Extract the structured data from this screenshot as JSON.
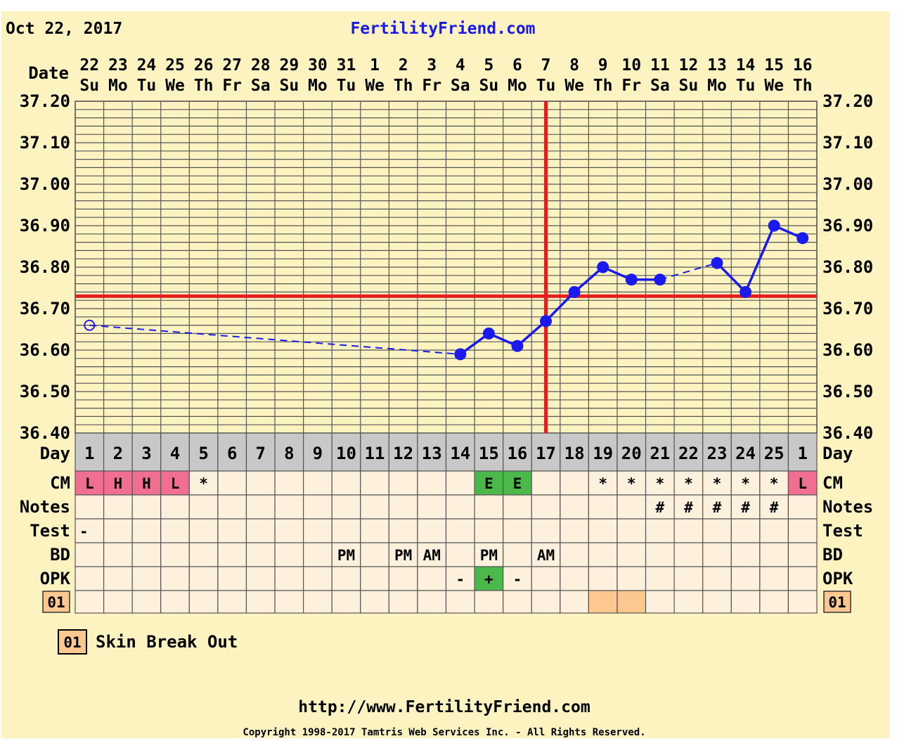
{
  "header": {
    "date": "Oct 22, 2017",
    "site": "FertilityFriend.com"
  },
  "labels": {
    "date": "Date",
    "day": "Day",
    "cm": "CM",
    "notes": "Notes",
    "test": "Test",
    "bd": "BD",
    "opk": "OPK",
    "custom": "01"
  },
  "legend": {
    "code": "01",
    "text": "Skin Break Out"
  },
  "footer": {
    "url": "http://www.FertilityFriend.com",
    "copyright": "Copyright 1998-2017 Tamtris Web Services Inc. - All Rights Reserved."
  },
  "colors": {
    "background": "#fdf3c0",
    "plot_bg": "#fdf3c0",
    "row_bg": "#fdf0dc",
    "grid": "#555555",
    "temp_line": "#1a1aee",
    "coverline": "#e41e1e",
    "cm_fertile": "#f06e90",
    "cm_egg": "#4cb84c",
    "opk_pos": "#4cb84c",
    "custom_marker": "#fcc890",
    "day_row_bg": "#c8c8c8",
    "link": "#1a1aee"
  },
  "chart_data": {
    "type": "line",
    "title": "",
    "dates": [
      "22",
      "23",
      "24",
      "25",
      "26",
      "27",
      "28",
      "29",
      "30",
      "31",
      "1",
      "2",
      "3",
      "4",
      "5",
      "6",
      "7",
      "8",
      "9",
      "10",
      "11",
      "12",
      "13",
      "14",
      "15",
      "16"
    ],
    "weekdays": [
      "Su",
      "Mo",
      "Tu",
      "We",
      "Th",
      "Fr",
      "Sa",
      "Su",
      "Mo",
      "Tu",
      "We",
      "Th",
      "Fr",
      "Sa",
      "Su",
      "Mo",
      "Tu",
      "We",
      "Th",
      "Fr",
      "Sa",
      "Su",
      "Mo",
      "Tu",
      "We",
      "Th"
    ],
    "cycle_days": [
      "1",
      "2",
      "3",
      "4",
      "5",
      "6",
      "7",
      "8",
      "9",
      "10",
      "11",
      "12",
      "13",
      "14",
      "15",
      "16",
      "17",
      "18",
      "19",
      "20",
      "21",
      "22",
      "23",
      "24",
      "25",
      "1"
    ],
    "y_ticks": [
      "37.20",
      "37.10",
      "37.00",
      "36.90",
      "36.80",
      "36.70",
      "36.60",
      "36.50",
      "36.40"
    ],
    "ylim": [
      36.4,
      37.2
    ],
    "grid": true,
    "series": [
      {
        "temps": [
          36.66,
          null,
          null,
          null,
          null,
          null,
          null,
          null,
          null,
          null,
          null,
          null,
          null,
          36.59,
          36.64,
          36.61,
          36.67,
          36.74,
          36.8,
          36.77,
          36.77,
          null,
          36.81,
          36.74,
          36.9,
          36.87
        ],
        "open_points": [
          0
        ]
      }
    ],
    "coverline": 36.73,
    "ovulation_day_index": 16,
    "cm": [
      "L",
      "H",
      "H",
      "L",
      "*",
      "",
      "",
      "",
      "",
      "",
      "",
      "",
      "",
      "",
      "E",
      "E",
      "",
      "",
      "*",
      "*",
      "*",
      "*",
      "*",
      "*",
      "*",
      "L"
    ],
    "cm_fertile": [
      true,
      true,
      true,
      true,
      false,
      false,
      false,
      false,
      false,
      false,
      false,
      false,
      false,
      false,
      false,
      false,
      false,
      false,
      false,
      false,
      false,
      false,
      false,
      false,
      false,
      true
    ],
    "cm_egg": [
      false,
      false,
      false,
      false,
      false,
      false,
      false,
      false,
      false,
      false,
      false,
      false,
      false,
      false,
      true,
      true,
      false,
      false,
      false,
      false,
      false,
      false,
      false,
      false,
      false,
      false
    ],
    "notes": [
      "",
      "",
      "",
      "",
      "",
      "",
      "",
      "",
      "",
      "",
      "",
      "",
      "",
      "",
      "",
      "",
      "",
      "",
      "",
      "",
      "#",
      "#",
      "#",
      "#",
      "#",
      ""
    ],
    "test": [
      "-",
      "",
      "",
      "",
      "",
      "",
      "",
      "",
      "",
      "",
      "",
      "",
      "",
      "",
      "",
      "",
      "",
      "",
      "",
      "",
      "",
      "",
      "",
      "",
      "",
      ""
    ],
    "bd": [
      "",
      "",
      "",
      "",
      "",
      "",
      "",
      "",
      "",
      "PM",
      "",
      "PM",
      "AM",
      "",
      "PM",
      "",
      "AM",
      "",
      "",
      "",
      "",
      "",
      "",
      "",
      "",
      ""
    ],
    "opk": [
      "",
      "",
      "",
      "",
      "",
      "",
      "",
      "",
      "",
      "",
      "",
      "",
      "",
      "-",
      "+",
      "-",
      "",
      "",
      "",
      "",
      "",
      "",
      "",
      "",
      "",
      ""
    ],
    "opk_positive": [
      false,
      false,
      false,
      false,
      false,
      false,
      false,
      false,
      false,
      false,
      false,
      false,
      false,
      false,
      true,
      false,
      false,
      false,
      false,
      false,
      false,
      false,
      false,
      false,
      false,
      false
    ],
    "custom": [
      false,
      false,
      false,
      false,
      false,
      false,
      false,
      false,
      false,
      false,
      false,
      false,
      false,
      false,
      false,
      false,
      false,
      false,
      true,
      true,
      false,
      false,
      false,
      false,
      false,
      false
    ]
  }
}
